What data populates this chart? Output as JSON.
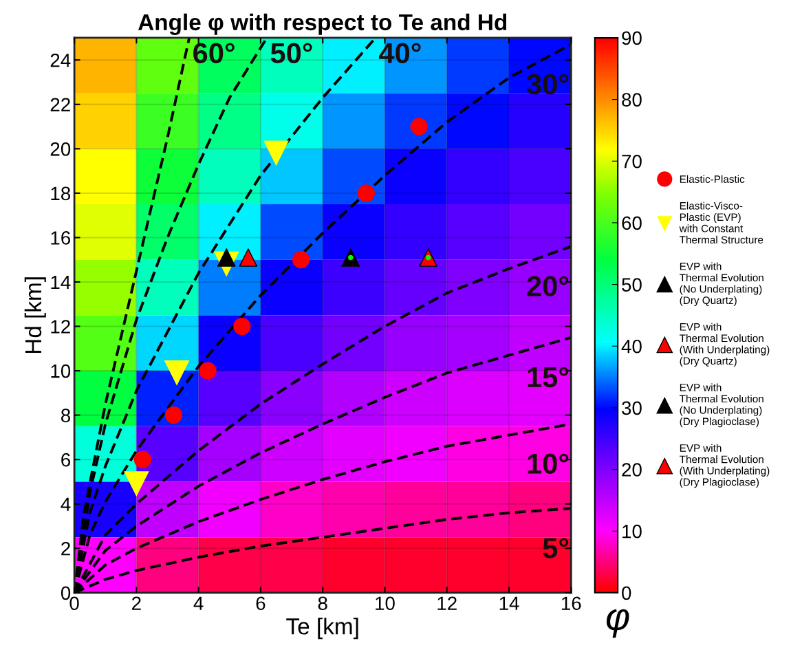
{
  "chart_data": {
    "type": "heatmap",
    "title": "Angle φ with respect to Te and Hd",
    "xlabel": "Te [km]",
    "ylabel": "Hd [km]",
    "clabel": "φ",
    "xlim": [
      0,
      16
    ],
    "xticks": [
      0,
      2,
      4,
      6,
      8,
      10,
      12,
      14,
      16
    ],
    "ylim": [
      0,
      25
    ],
    "yticks": [
      0,
      2,
      4,
      6,
      8,
      10,
      12,
      14,
      16,
      18,
      20,
      22,
      24
    ],
    "clim": [
      0,
      90
    ],
    "cticks": [
      0,
      10,
      20,
      30,
      40,
      50,
      60,
      70,
      80,
      90
    ],
    "grid": true,
    "legend": "right",
    "cells": [
      [
        77,
        62,
        52,
        45,
        40,
        36,
        32,
        30
      ],
      [
        75,
        59,
        49,
        42,
        36,
        32,
        30,
        27
      ],
      [
        72,
        55,
        45,
        38,
        33,
        29,
        26,
        24
      ],
      [
        70,
        51,
        40,
        33,
        29,
        26,
        23,
        21
      ],
      [
        66,
        45,
        35,
        29,
        25,
        22,
        20,
        18
      ],
      [
        61,
        39,
        29,
        24,
        21,
        18,
        17,
        15
      ],
      [
        54,
        31,
        23,
        19,
        16,
        14,
        13,
        12
      ],
      [
        43,
        23,
        17,
        14,
        12,
        11,
        9,
        9
      ],
      [
        28,
        15,
        11,
        8,
        7,
        6,
        6,
        5
      ],
      [
        10,
        5,
        3,
        3,
        2,
        2,
        2,
        2
      ]
    ],
    "series": [
      {
        "type": "line",
        "color": "#000000",
        "line_style": "dashed",
        "x": [
          0,
          0.3,
          1,
          2,
          3,
          3.7
        ],
        "values": [
          0,
          3.5,
          8.5,
          14.5,
          20.5,
          25
        ]
      },
      {
        "type": "line",
        "color": "#000000",
        "line_style": "dashed",
        "x": [
          0,
          0.5,
          1,
          2,
          3,
          4,
          5,
          6.2
        ],
        "values": [
          0,
          4.5,
          7.6,
          12.3,
          16,
          19.3,
          22.3,
          25
        ]
      },
      {
        "type": "line",
        "color": "#000000",
        "line_style": "dashed",
        "x": [
          0,
          0.5,
          1,
          2,
          4,
          6,
          8,
          9.7
        ],
        "values": [
          0,
          3.6,
          5.7,
          9.1,
          14.4,
          18.8,
          22.3,
          25
        ]
      },
      {
        "type": "line",
        "color": "#000000",
        "line_style": "dashed",
        "x": [
          0,
          0.5,
          1,
          2,
          4,
          6,
          8,
          10,
          12,
          14,
          16
        ],
        "values": [
          0,
          2.6,
          4.1,
          6.4,
          10.2,
          13.4,
          16.2,
          18.8,
          21.2,
          23.2,
          24.7
        ]
      },
      {
        "type": "line",
        "color": "#000000",
        "line_style": "dashed",
        "x": [
          0,
          1,
          2,
          4,
          6,
          8,
          10,
          12,
          14,
          16
        ],
        "values": [
          0,
          2.6,
          4.0,
          6.4,
          8.5,
          10.3,
          12,
          13.5,
          14.6,
          15.6
        ]
      },
      {
        "type": "line",
        "color": "#000000",
        "line_style": "dashed",
        "x": [
          0,
          1,
          2,
          4,
          6,
          8,
          10,
          12,
          14,
          16
        ],
        "values": [
          0,
          1.9,
          3.0,
          4.8,
          6.3,
          7.6,
          8.8,
          9.9,
          10.7,
          11.5
        ]
      },
      {
        "type": "line",
        "color": "#000000",
        "line_style": "dashed",
        "x": [
          0,
          1,
          2,
          4,
          6,
          8,
          10,
          12,
          14,
          16
        ],
        "values": [
          0,
          1.25,
          2.0,
          3.2,
          4.2,
          5.1,
          5.9,
          6.6,
          7.1,
          7.6
        ]
      },
      {
        "type": "line",
        "color": "#000000",
        "line_style": "dashed",
        "x": [
          0,
          1,
          2,
          4,
          6,
          8,
          10,
          12,
          14,
          16
        ],
        "values": [
          0,
          0.6,
          1.0,
          1.6,
          2.1,
          2.5,
          2.9,
          3.3,
          3.6,
          3.8
        ]
      },
      {
        "type": "scatter",
        "name": "Elastic-Plastic",
        "color": "#ff0000",
        "marker": "circle",
        "x": [
          2.2,
          3.2,
          4.3,
          5.4,
          7.3,
          9.4,
          11.1
        ],
        "values": [
          6,
          8,
          10,
          12,
          15,
          18,
          21
        ]
      },
      {
        "type": "scatter",
        "name": "Elastic-Visco-\nPlastic (EVP)\nwith Constant\nThermal Structure",
        "color": "#ffff00",
        "marker": "triangle_down",
        "x": [
          2.0,
          3.3,
          4.9,
          6.5
        ],
        "values": [
          4.9,
          9.9,
          14.8,
          19.8
        ]
      },
      {
        "type": "scatter",
        "name": "EVP with\nThermal Evolution\n(No Underplating)\n(Dry Quartz)",
        "color": "#000000",
        "marker": "triangle",
        "x": [
          4.9
        ],
        "values": [
          15.1
        ]
      },
      {
        "type": "scatter",
        "name": "EVP with\nThermal Evolution\n(With Underplating)\n(Dry Quartz)",
        "color": "#ff0000",
        "marker": "triangle",
        "x": [
          5.6
        ],
        "values": [
          15.1
        ]
      },
      {
        "type": "scatter",
        "name": "EVP with\nThermal Evolution\n(No Underplating)\n(Dry Plagioclase)",
        "color": "#000000",
        "marker": "triangle",
        "x": [
          8.9
        ],
        "values": [
          15.1
        ]
      },
      {
        "type": "scatter",
        "name": "EVP with\nThermal Evolution\n(With Underplating)\n(Dry Plagioclase)",
        "color": "#ff0000",
        "marker": "triangle",
        "x": [
          11.4
        ],
        "values": [
          15.1
        ]
      },
      {
        "type": "scatter",
        "color": "#00ff00",
        "marker": "dot",
        "x": [
          8.9,
          11.4
        ],
        "values": [
          15.1,
          15.1
        ]
      }
    ],
    "annotations": [
      "60°",
      "50°",
      "40°",
      "30°",
      "20°",
      "15°",
      "10°",
      "5°"
    ]
  }
}
